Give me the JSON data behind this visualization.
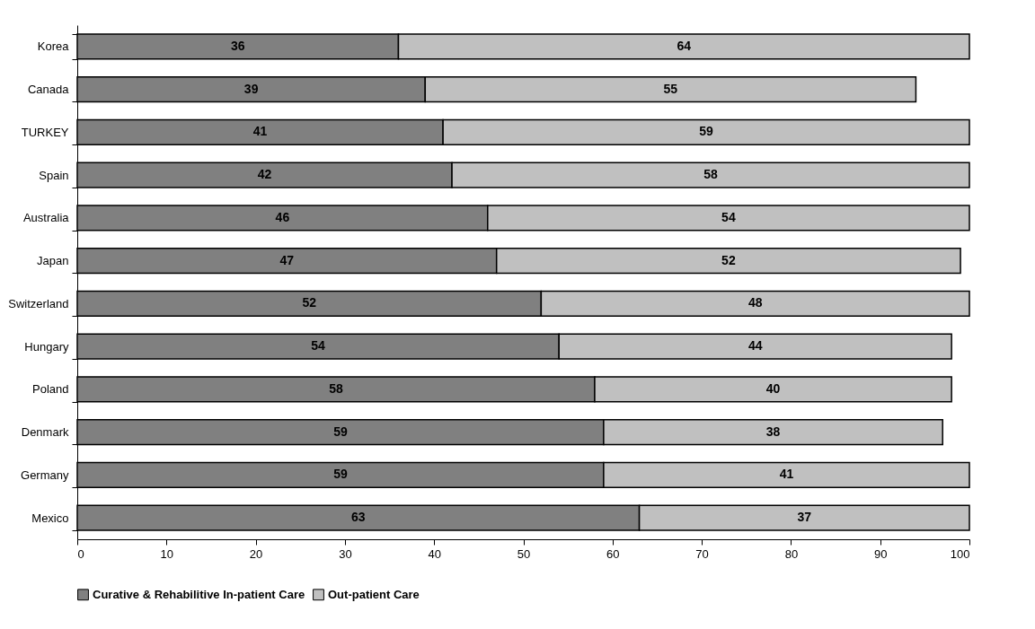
{
  "chart_data": {
    "type": "bar",
    "orientation": "horizontal",
    "stacked": true,
    "data_labels": true,
    "legend": "bottom",
    "grid": false,
    "categories": [
      "Korea",
      "Canada",
      "TURKEY",
      "Spain",
      "Australia",
      "Japan",
      "Switzerland",
      "Hungary",
      "Poland",
      "Denmark",
      "Germany",
      "Mexico"
    ],
    "series": [
      {
        "name": "Curative & Rehabilitive In-patient Care",
        "color": "#808080",
        "values": [
          36,
          39,
          41,
          42,
          46,
          47,
          52,
          54,
          58,
          59,
          59,
          63
        ]
      },
      {
        "name": "Out-patient Care",
        "color": "#c0c0c0",
        "values": [
          64,
          55,
          59,
          58,
          54,
          52,
          48,
          44,
          40,
          38,
          41,
          37
        ]
      }
    ],
    "xlim": [
      0,
      100
    ],
    "xticks": [
      0,
      10,
      20,
      30,
      40,
      50,
      60,
      70,
      80,
      90,
      100
    ]
  }
}
